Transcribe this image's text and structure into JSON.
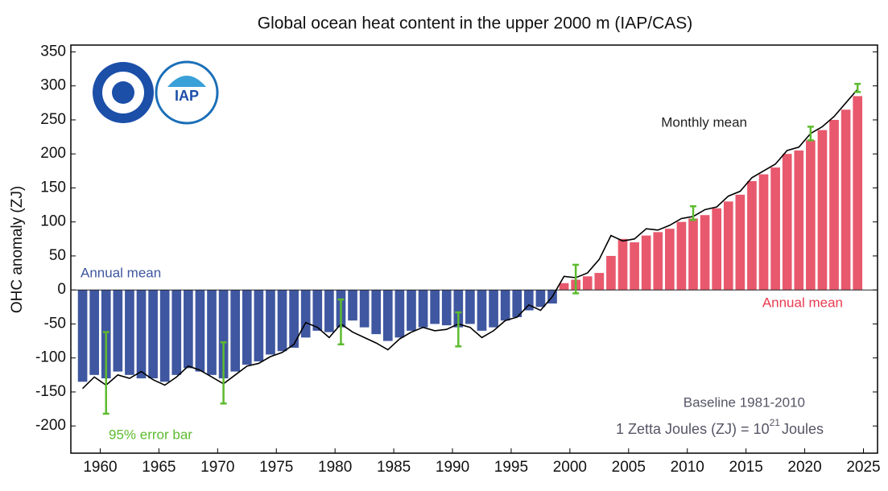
{
  "chart_data": {
    "type": "bar",
    "title": "Global ocean heat content in the upper 2000 m (IAP/CAS)",
    "y_label": "OHC anomaly (ZJ)",
    "xlim": [
      1957.5,
      2026.2
    ],
    "ylim": [
      -240,
      360
    ],
    "xticks": [
      1960,
      1965,
      1970,
      1975,
      1980,
      1985,
      1990,
      1995,
      2000,
      2005,
      2010,
      2015,
      2020,
      2025
    ],
    "yticks": [
      -200,
      -150,
      -100,
      -50,
      0,
      50,
      100,
      150,
      200,
      250,
      300,
      350
    ],
    "color_positive": "#e8596e",
    "color_negative": "#3f57a0",
    "x": [
      1958,
      1959,
      1960,
      1961,
      1962,
      1963,
      1964,
      1965,
      1966,
      1967,
      1968,
      1969,
      1970,
      1971,
      1972,
      1973,
      1974,
      1975,
      1976,
      1977,
      1978,
      1979,
      1980,
      1981,
      1982,
      1983,
      1984,
      1985,
      1986,
      1987,
      1988,
      1989,
      1990,
      1991,
      1992,
      1993,
      1994,
      1995,
      1996,
      1997,
      1998,
      1999,
      2000,
      2001,
      2002,
      2003,
      2004,
      2005,
      2006,
      2007,
      2008,
      2009,
      2010,
      2011,
      2012,
      2013,
      2014,
      2015,
      2016,
      2017,
      2018,
      2019,
      2020,
      2021,
      2022,
      2023,
      2024
    ],
    "values": [
      -135,
      -125,
      -130,
      -120,
      -125,
      -130,
      -130,
      -135,
      -125,
      -115,
      -120,
      -125,
      -130,
      -120,
      -110,
      -105,
      -95,
      -90,
      -85,
      -70,
      -60,
      -62,
      -55,
      -45,
      -55,
      -65,
      -75,
      -70,
      -60,
      -55,
      -50,
      -52,
      -55,
      -50,
      -60,
      -55,
      -45,
      -40,
      -30,
      -25,
      -20,
      10,
      15,
      20,
      25,
      50,
      75,
      70,
      80,
      85,
      90,
      100,
      105,
      110,
      120,
      130,
      140,
      160,
      170,
      180,
      200,
      205,
      220,
      235,
      250,
      265,
      285
    ],
    "monthly": {
      "color": "#000000",
      "x": [
        1958.5,
        1959.5,
        1960.5,
        1961.5,
        1962.5,
        1963.5,
        1964.5,
        1965.5,
        1966.5,
        1967.5,
        1968.5,
        1969.5,
        1970.5,
        1971.5,
        1972.5,
        1973.5,
        1974.5,
        1975.5,
        1976.5,
        1977.5,
        1978.5,
        1979.5,
        1980.5,
        1981.5,
        1982.5,
        1983.5,
        1984.5,
        1985.5,
        1986.5,
        1987.5,
        1988.5,
        1989.5,
        1990.5,
        1991.5,
        1992.5,
        1993.5,
        1994.5,
        1995.5,
        1996.5,
        1997.5,
        1998.5,
        1999.5,
        2000.5,
        2001.5,
        2002.5,
        2003.5,
        2004.5,
        2005.5,
        2006.5,
        2007.5,
        2008.5,
        2009.5,
        2010.5,
        2011.5,
        2012.5,
        2013.5,
        2014.5,
        2015.5,
        2016.5,
        2017.5,
        2018.5,
        2019.5,
        2020.5,
        2021.5,
        2022.5,
        2023.5,
        2024.5
      ],
      "values": [
        -145,
        -128,
        -140,
        -125,
        -130,
        -120,
        -132,
        -140,
        -128,
        -112,
        -118,
        -128,
        -138,
        -125,
        -112,
        -108,
        -98,
        -92,
        -80,
        -48,
        -55,
        -70,
        -50,
        -62,
        -70,
        -78,
        -88,
        -72,
        -62,
        -55,
        -60,
        -58,
        -50,
        -55,
        -70,
        -60,
        -45,
        -40,
        -22,
        -30,
        -10,
        20,
        18,
        25,
        45,
        80,
        72,
        75,
        90,
        88,
        95,
        105,
        108,
        118,
        122,
        138,
        145,
        165,
        175,
        185,
        205,
        210,
        230,
        240,
        255,
        275,
        295
      ]
    },
    "errorbars": {
      "color": "#5dbb2f",
      "x": [
        1960.5,
        1970.5,
        1980.5,
        1990.5,
        2000.5,
        2010.5,
        2020.5,
        2024.5
      ],
      "values": [
        -122,
        -122,
        -47,
        -58,
        16,
        113,
        230,
        297
      ],
      "errors": [
        60,
        45,
        33,
        25,
        21,
        10,
        10,
        6
      ]
    },
    "annotations": [
      {
        "text": "Annual mean",
        "color": "#3f57a0"
      },
      {
        "text": "Annual mean",
        "color": "#e83b50"
      },
      {
        "text": "Monthly mean",
        "color": "#222222"
      },
      {
        "text": "95% error bar",
        "color": "#5dbb2f"
      },
      {
        "text": "Baseline 1981-2010",
        "color": "#555566"
      }
    ],
    "unit_note": {
      "text": "1 Zetta Joules (ZJ) = 10",
      "sup": "21",
      "tail": "Joules",
      "color": "#555566"
    }
  }
}
